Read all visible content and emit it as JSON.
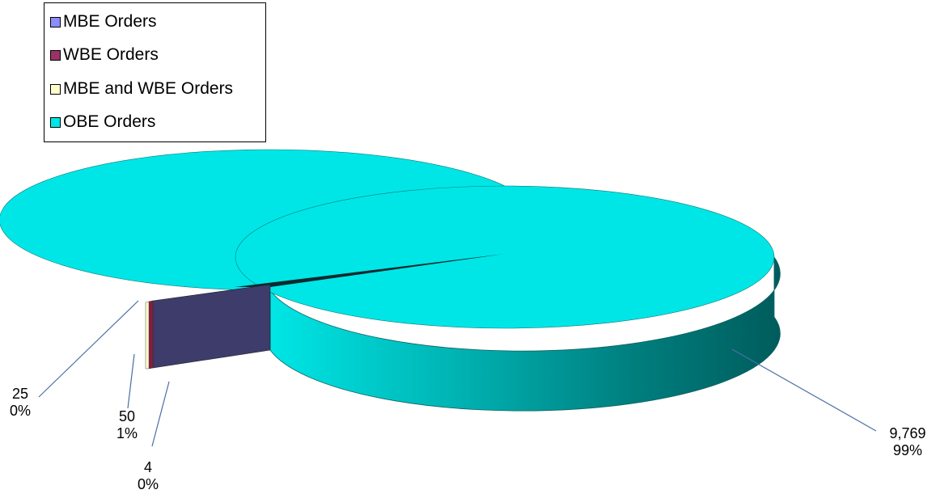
{
  "chart_data": {
    "type": "pie",
    "title": "",
    "slices": [
      {
        "name": "MBE Orders",
        "value": 50,
        "percent_label": "1%",
        "color": "#3d3c6b",
        "legend_color": "#8c8cff"
      },
      {
        "name": "WBE Orders",
        "value": 25,
        "percent_label": "0%",
        "color": "#8b1a3d",
        "legend_color": "#993366"
      },
      {
        "name": "MBE and WBE Orders",
        "value": 4,
        "percent_label": "0%",
        "color": "#ffffcc",
        "legend_color": "#ffffcc"
      },
      {
        "name": "OBE Orders",
        "value": 9769,
        "percent_label": "99%",
        "color": "#00e6e6",
        "legend_color": "#00e6e6"
      }
    ],
    "value_labels": [
      {
        "value": "25",
        "percent": "0%"
      },
      {
        "value": "50",
        "percent": "1%"
      },
      {
        "value": "4",
        "percent": "0%"
      },
      {
        "value": "9,769",
        "percent": "99%"
      }
    ],
    "legend_position": "top-left",
    "style": "3d-exploded"
  }
}
